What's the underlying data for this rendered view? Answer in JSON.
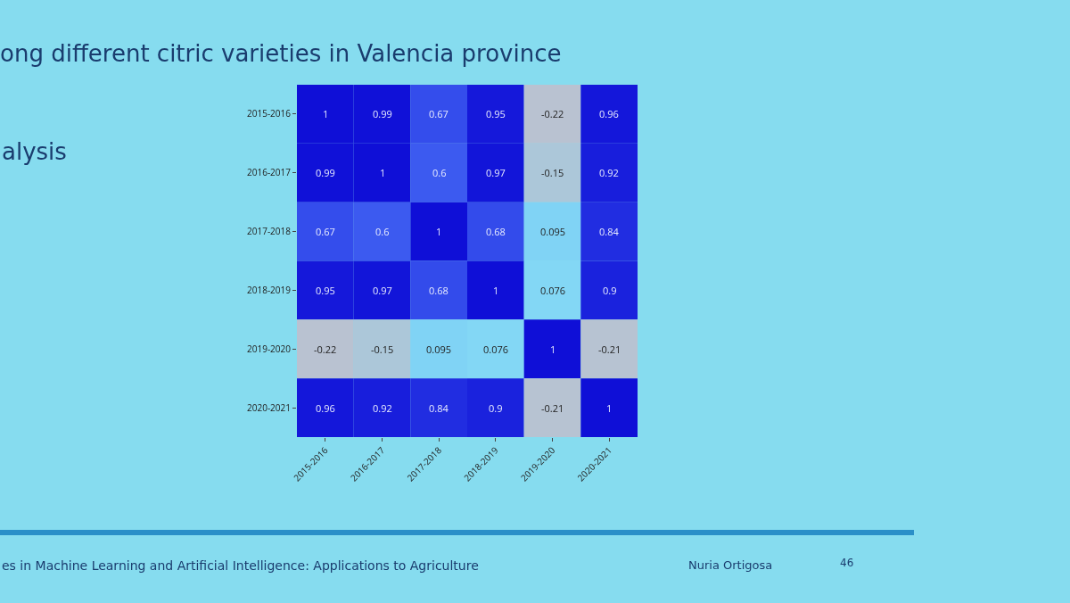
{
  "chart_data": {
    "type": "heatmap",
    "title": "ong different citric varieties in Valencia province",
    "subtitle": "alysis",
    "categories": [
      "2015-2016",
      "2016-2017",
      "2017-2018",
      "2018-2019",
      "2019-2020",
      "2020-2021"
    ],
    "y_categories": [
      "2015-2016",
      "2016-2017",
      "2017-2018",
      "2018-2019",
      "2019-2020",
      "2020-2021"
    ],
    "cells": [
      [
        1,
        0.99,
        0.67,
        0.95,
        -0.22,
        0.96
      ],
      [
        0.99,
        1,
        0.6,
        0.97,
        -0.15,
        0.92
      ],
      [
        0.67,
        0.6,
        1,
        0.68,
        0.095,
        0.84
      ],
      [
        0.95,
        0.97,
        0.68,
        1,
        0.076,
        0.9
      ],
      [
        -0.22,
        -0.15,
        0.095,
        0.076,
        1,
        -0.21
      ],
      [
        0.96,
        0.92,
        0.84,
        0.9,
        -0.21,
        1
      ]
    ],
    "data_labels": true,
    "annotations": [
      "es in Machine Learning and Artificial Intelligence: Applications to Agriculture",
      "Nuria Ortigosa",
      "46"
    ]
  }
}
